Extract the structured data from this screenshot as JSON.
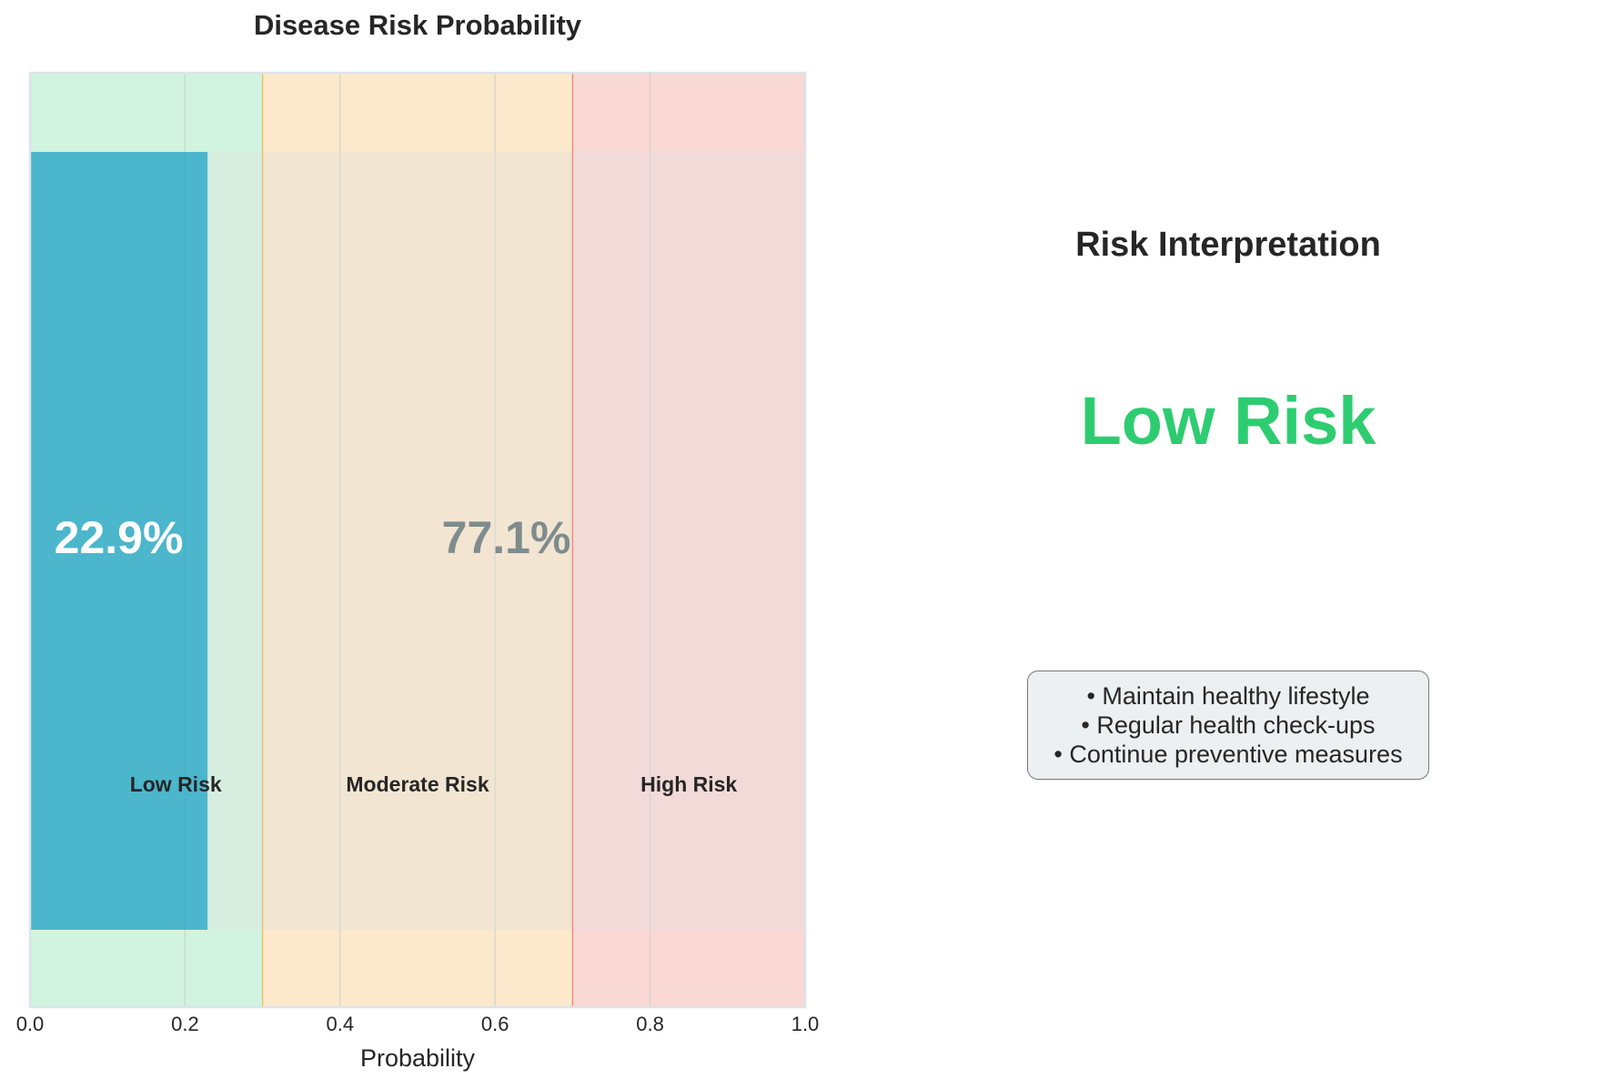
{
  "chart_data": {
    "type": "bar",
    "orientation": "horizontal-stacked",
    "title": "Disease Risk Probability",
    "xlabel": "Probability",
    "xlim": [
      0,
      1
    ],
    "xticks": [
      "0.0",
      "0.2",
      "0.4",
      "0.6",
      "0.8",
      "1.0"
    ],
    "grid": true,
    "segments": [
      {
        "value": 0.229,
        "label": "22.9%",
        "color": "#1fa2c6",
        "label_color": "#ffffff"
      },
      {
        "value": 0.771,
        "label": "77.1%",
        "color": "#e0e0e0",
        "label_color": "#7f8c8d"
      }
    ],
    "zones": [
      {
        "name": "Low Risk",
        "start": 0.0,
        "end": 0.3,
        "color": "#2ecc71"
      },
      {
        "name": "Moderate Risk",
        "start": 0.3,
        "end": 0.7,
        "color": "#f39c12"
      },
      {
        "name": "High Risk",
        "start": 0.7,
        "end": 1.0,
        "color": "#e74c3c"
      }
    ]
  },
  "interpretation": {
    "title": "Risk Interpretation",
    "level": "Low Risk",
    "level_color": "#2ecc71",
    "advice": [
      "• Maintain healthy lifestyle",
      "• Regular health check-ups",
      "• Continue preventive measures"
    ]
  }
}
